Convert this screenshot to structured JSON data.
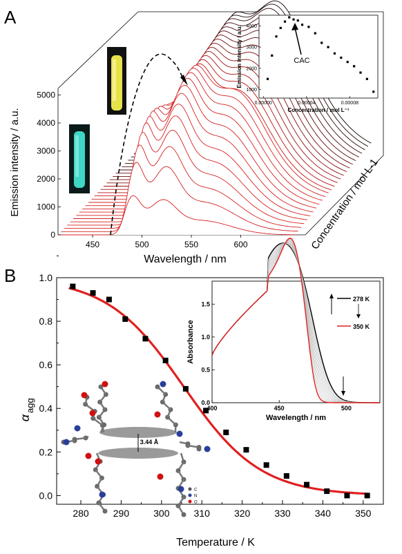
{
  "panels": {
    "a_label": "A",
    "b_label": "B"
  },
  "chart_data": [
    {
      "type": "line",
      "panel": "A",
      "subtype": "waterfall-3d",
      "xlabel": "Wavelength / nm",
      "ylabel": "Emission intensity / a.u.",
      "zlabel": "Concentration / mol L-1",
      "x_ticks": [
        450,
        500,
        550,
        600
      ],
      "y_ticks": [
        0,
        1000,
        2000,
        3000,
        4000,
        5000
      ],
      "xlim": [
        415,
        650
      ],
      "ylim": [
        0,
        5200
      ],
      "series_count": 26,
      "red_series_count": 12,
      "colors": {
        "red": "#d62020",
        "dark": "#7a1010",
        "black": "#000000"
      },
      "peak_band_1_nm": 490,
      "peak_band_2_nm": 520,
      "peak_band_monomer_nm": 555,
      "series_peaks": [
        1450,
        2650,
        3300,
        3800,
        4200,
        4500,
        4750,
        4900,
        5000,
        5050,
        5050,
        5000,
        4950,
        4950,
        4950,
        4950,
        4950,
        4950,
        4950,
        4950,
        4950,
        4950,
        4950,
        4950,
        4950,
        4950
      ],
      "insets": {
        "spectra_inset": {
          "type": "scatter",
          "xlabel": "Concentration / mol L⁻¹",
          "ylabel": "Emission intensity / a.u.",
          "x_ticks": [
            "0.00000",
            "0.00004",
            "0.00008"
          ],
          "y_ticks": [
            1000,
            2000,
            3000,
            4000
          ],
          "xlim": [
            -4e-06,
            0.000106
          ],
          "ylim": [
            600,
            4500
          ],
          "annotation": "CAC",
          "x": [
            4e-06,
            8e-06,
            1.2e-05,
            1.6e-05,
            2e-05,
            2.4e-05,
            2.8e-05,
            3.2e-05,
            3.6e-05,
            4.2e-05,
            4.8e-05,
            5.4e-05,
            6e-05,
            6.6e-05,
            7.2e-05,
            7.8e-05,
            8.4e-05,
            9e-05,
            9.6e-05,
            0.000102
          ],
          "y": [
            1500,
            2600,
            3500,
            3900,
            4200,
            4400,
            4300,
            4250,
            4050,
            3950,
            3650,
            3200,
            3000,
            2700,
            2500,
            2300,
            2100,
            1800,
            1500,
            900
          ]
        }
      },
      "vial_images": [
        {
          "name": "yellow-vial",
          "color": "#e8e24a"
        },
        {
          "name": "cyan-vial",
          "color": "#3fd6c4"
        }
      ]
    },
    {
      "type": "scatter",
      "panel": "B",
      "xlabel": "Temperature / K",
      "ylabel": "αagg",
      "ylabel_main": "α",
      "ylabel_sub": "agg",
      "x_ticks": [
        280,
        290,
        300,
        310,
        320,
        330,
        340,
        350
      ],
      "y_ticks": [
        "0.0",
        "0.2",
        "0.4",
        "0.6",
        "0.8",
        "1.0"
      ],
      "xlim": [
        274,
        355
      ],
      "ylim": [
        -0.04,
        1.0
      ],
      "x": [
        278,
        283,
        287,
        291,
        296,
        301,
        306,
        311,
        316,
        321,
        326,
        331,
        336,
        341,
        346,
        351
      ],
      "y": [
        0.96,
        0.93,
        0.9,
        0.81,
        0.72,
        0.62,
        0.49,
        0.39,
        0.29,
        0.21,
        0.14,
        0.09,
        0.05,
        0.02,
        0.0,
        0.0
      ],
      "fit_color": "#e02020",
      "fit": {
        "Tm": 305.5,
        "width": 9.5,
        "x_from": 277,
        "x_to": 351
      },
      "insets": {
        "absorbance_inset": {
          "type": "line",
          "xlabel": "Wavelength / nm",
          "ylabel": "Absorbance",
          "x_ticks": [
            400,
            450,
            500
          ],
          "y_ticks": [
            "0.0",
            "0.5",
            "1.0",
            "1.5"
          ],
          "xlim": [
            400,
            525
          ],
          "ylim": [
            0,
            1.85
          ],
          "legend": [
            {
              "label": "278 K",
              "color": "#000000"
            },
            {
              "label": "350 K",
              "color": "#e02020"
            }
          ]
        },
        "molecule_inset": {
          "distance_label": "3.44 Å",
          "legend": [
            {
              "label": "C",
              "color": "#555555"
            },
            {
              "label": "N",
              "color": "#2a3f9a"
            },
            {
              "label": "O",
              "color": "#d01010"
            }
          ]
        }
      }
    }
  ]
}
